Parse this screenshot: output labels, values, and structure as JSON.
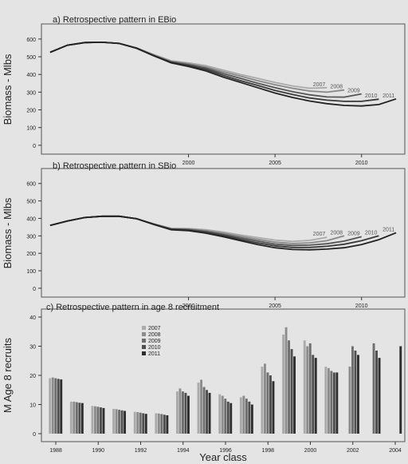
{
  "xaxis_label": "Year class",
  "chart_data": [
    {
      "type": "line",
      "title": "a) Retrospective pattern in EBio",
      "xlabel": "",
      "ylabel": "Biomass - Mlbs",
      "xlim": [
        1991.5,
        2012.5
      ],
      "ylim": [
        -5,
        640
      ],
      "xticks": [
        2000,
        2005,
        2010
      ],
      "xtick_labels": [
        "2000",
        "2005",
        "2010"
      ],
      "yticks": [
        0,
        100,
        200,
        300,
        400,
        500,
        600
      ],
      "ytick_labels": [
        "0",
        "100",
        "200",
        "300",
        "400",
        "500",
        "600"
      ],
      "grid": false,
      "series": [
        {
          "name": "2011",
          "color": "#222222",
          "x": [
            1992,
            1993,
            1994,
            1995,
            1996,
            1997,
            1998,
            1999,
            2000,
            2001,
            2002,
            2003,
            2004,
            2005,
            2006,
            2007,
            2008,
            2009,
            2010,
            2011,
            2012
          ],
          "y": [
            525,
            565,
            580,
            582,
            575,
            548,
            505,
            465,
            445,
            420,
            385,
            355,
            325,
            295,
            270,
            250,
            235,
            225,
            222,
            230,
            262
          ]
        },
        {
          "name": "2010",
          "color": "#3a3a3a",
          "x": [
            1992,
            1993,
            1994,
            1995,
            1996,
            1997,
            1998,
            1999,
            2000,
            2001,
            2002,
            2003,
            2004,
            2005,
            2006,
            2007,
            2008,
            2009,
            2010,
            2011
          ],
          "y": [
            525,
            565,
            580,
            582,
            575,
            548,
            505,
            468,
            450,
            428,
            395,
            365,
            338,
            310,
            287,
            267,
            255,
            248,
            248,
            260
          ]
        },
        {
          "name": "2009",
          "color": "#555555",
          "x": [
            1992,
            1993,
            1994,
            1995,
            1996,
            1997,
            1998,
            1999,
            2000,
            2001,
            2002,
            2003,
            2004,
            2005,
            2006,
            2007,
            2008,
            2009,
            2010
          ],
          "y": [
            525,
            565,
            580,
            582,
            575,
            548,
            507,
            470,
            455,
            435,
            405,
            378,
            350,
            325,
            303,
            285,
            273,
            272,
            290
          ]
        },
        {
          "name": "2008",
          "color": "#888888",
          "x": [
            1992,
            1993,
            1994,
            1995,
            1996,
            1997,
            1998,
            1999,
            2000,
            2001,
            2002,
            2003,
            2004,
            2005,
            2006,
            2007,
            2008,
            2009
          ],
          "y": [
            525,
            565,
            580,
            582,
            575,
            550,
            510,
            474,
            460,
            442,
            415,
            390,
            365,
            342,
            322,
            306,
            300,
            312
          ]
        },
        {
          "name": "2007",
          "color": "#aaaaaa",
          "x": [
            1992,
            1993,
            1994,
            1995,
            1996,
            1997,
            1998,
            1999,
            2000,
            2001,
            2002,
            2003,
            2004,
            2005,
            2006,
            2007,
            2008
          ],
          "y": [
            525,
            565,
            580,
            582,
            575,
            550,
            512,
            477,
            465,
            450,
            425,
            400,
            378,
            355,
            335,
            322,
            325
          ]
        }
      ]
    },
    {
      "type": "line",
      "title": "b) Retrospective pattern in SBio",
      "xlabel": "",
      "ylabel": "Biomass - Mlbs",
      "xlim": [
        1991.5,
        2012.5
      ],
      "ylim": [
        -5,
        640
      ],
      "xticks": [
        2000,
        2005,
        2010
      ],
      "xtick_labels": [
        "2000",
        "2005",
        "2010"
      ],
      "yticks": [
        0,
        100,
        200,
        300,
        400,
        500,
        600
      ],
      "ytick_labels": [
        "0",
        "100",
        "200",
        "300",
        "400",
        "500",
        "600"
      ],
      "grid": false,
      "series": [
        {
          "name": "2011",
          "color": "#222222",
          "x": [
            1992,
            1993,
            1994,
            1995,
            1996,
            1997,
            1998,
            1999,
            2000,
            2001,
            2002,
            2003,
            2004,
            2005,
            2006,
            2007,
            2008,
            2009,
            2010,
            2011,
            2012
          ],
          "y": [
            360,
            385,
            405,
            412,
            412,
            398,
            365,
            335,
            330,
            315,
            295,
            272,
            250,
            232,
            222,
            220,
            224,
            232,
            250,
            278,
            318
          ]
        },
        {
          "name": "2010",
          "color": "#3a3a3a",
          "x": [
            1992,
            1993,
            1994,
            1995,
            1996,
            1997,
            1998,
            1999,
            2000,
            2001,
            2002,
            2003,
            2004,
            2005,
            2006,
            2007,
            2008,
            2009,
            2010,
            2011
          ],
          "y": [
            360,
            385,
            405,
            412,
            412,
            398,
            366,
            337,
            333,
            320,
            302,
            280,
            260,
            243,
            234,
            234,
            240,
            252,
            272,
            300
          ]
        },
        {
          "name": "2009",
          "color": "#555555",
          "x": [
            1992,
            1993,
            1994,
            1995,
            1996,
            1997,
            1998,
            1999,
            2000,
            2001,
            2002,
            2003,
            2004,
            2005,
            2006,
            2007,
            2008,
            2009,
            2010
          ],
          "y": [
            360,
            385,
            405,
            412,
            412,
            398,
            367,
            339,
            336,
            325,
            308,
            288,
            270,
            253,
            245,
            247,
            255,
            270,
            295
          ]
        },
        {
          "name": "2008",
          "color": "#888888",
          "x": [
            1992,
            1993,
            1994,
            1995,
            1996,
            1997,
            1998,
            1999,
            2000,
            2001,
            2002,
            2003,
            2004,
            2005,
            2006,
            2007,
            2008,
            2009
          ],
          "y": [
            360,
            385,
            405,
            412,
            412,
            398,
            368,
            341,
            339,
            330,
            315,
            297,
            280,
            264,
            256,
            260,
            272,
            300
          ]
        },
        {
          "name": "2007",
          "color": "#aaaaaa",
          "x": [
            1992,
            1993,
            1994,
            1995,
            1996,
            1997,
            1998,
            1999,
            2000,
            2001,
            2002,
            2003,
            2004,
            2005,
            2006,
            2007,
            2008
          ],
          "y": [
            360,
            385,
            405,
            412,
            412,
            398,
            369,
            343,
            342,
            335,
            322,
            305,
            290,
            276,
            268,
            274,
            292
          ]
        }
      ]
    },
    {
      "type": "bar",
      "title": "c) Retrospective pattern in age 8 recruitment",
      "xlabel": "Year class",
      "ylabel": "M Age 8 recruits",
      "ylim": [
        0,
        40
      ],
      "yticks": [
        0,
        10,
        20,
        30,
        40
      ],
      "ytick_labels": [
        "0",
        "10",
        "20",
        "30",
        "40"
      ],
      "categories": [
        "1988",
        "1989",
        "1990",
        "1991",
        "1992",
        "1993",
        "1994",
        "1995",
        "1996",
        "1997",
        "1998",
        "1999",
        "2000",
        "2001",
        "2002",
        "2003",
        "2004"
      ],
      "xtick_labels": [
        "1988",
        "1990",
        "1992",
        "1994",
        "1996",
        "1998",
        "2000",
        "2002",
        "2004"
      ],
      "legend_position": "top-left",
      "series": [
        {
          "name": "2007",
          "color": "#aaaaaa",
          "values": [
            19,
            11,
            9.5,
            8.5,
            7.5,
            7,
            14.5,
            17.5,
            13.5,
            12.5,
            23,
            34,
            32,
            23,
            null,
            null,
            null
          ]
        },
        {
          "name": "2008",
          "color": "#8c8c8c",
          "values": [
            19.3,
            11,
            9.4,
            8.4,
            7.4,
            6.9,
            15.5,
            18.5,
            13,
            13,
            24,
            36.5,
            30,
            22.5,
            23,
            null,
            null
          ]
        },
        {
          "name": "2009",
          "color": "#6e6e6e",
          "values": [
            19,
            10.8,
            9.2,
            8.2,
            7.2,
            6.7,
            14.5,
            16,
            12,
            12,
            21,
            32,
            31,
            21.5,
            30,
            31,
            null
          ]
        },
        {
          "name": "2010",
          "color": "#4e4e4e",
          "values": [
            18.8,
            10.6,
            9,
            8,
            7,
            6.5,
            14,
            15,
            11,
            11,
            20,
            29,
            27,
            21,
            28.5,
            28.5,
            null
          ]
        },
        {
          "name": "2011",
          "color": "#2e2e2e",
          "values": [
            18.6,
            10.5,
            8.8,
            7.8,
            6.8,
            6.3,
            13,
            14,
            10.5,
            10,
            18,
            26.5,
            26,
            21,
            27,
            26,
            30
          ]
        }
      ]
    }
  ]
}
